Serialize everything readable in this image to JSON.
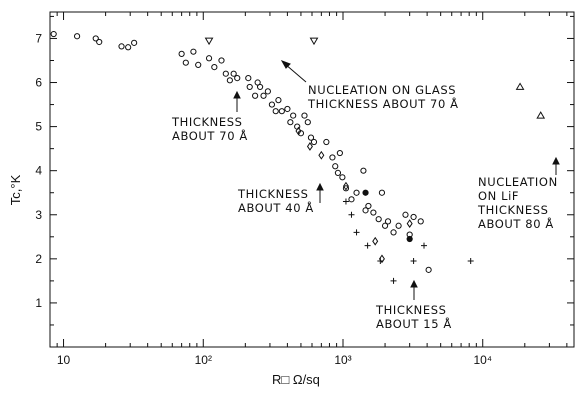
{
  "chart_data": {
    "type": "scatter",
    "x_scale": "log",
    "xlim": [
      8,
      45000
    ],
    "ylim": [
      0,
      7.6
    ],
    "xlabel": "R□ Ω/sq",
    "ylabel": "Tc,°K",
    "x_ticks": [
      {
        "value": 10,
        "label": "10"
      },
      {
        "value": 100,
        "label": "10²"
      },
      {
        "value": 1000,
        "label": "10³"
      },
      {
        "value": 10000,
        "label": "10⁴"
      }
    ],
    "y_ticks": [
      1,
      2,
      3,
      4,
      5,
      6,
      7
    ],
    "grid": false,
    "series": [
      {
        "marker": "circle",
        "points": [
          [
            8.5,
            7.1
          ],
          [
            12.5,
            7.05
          ],
          [
            17,
            7.0
          ],
          [
            18,
            6.92
          ],
          [
            26,
            6.82
          ],
          [
            29,
            6.8
          ],
          [
            32,
            6.9
          ],
          [
            70,
            6.65
          ],
          [
            75,
            6.45
          ],
          [
            85,
            6.7
          ],
          [
            92,
            6.4
          ],
          [
            110,
            6.55
          ],
          [
            120,
            6.35
          ],
          [
            135,
            6.5
          ],
          [
            145,
            6.2
          ],
          [
            155,
            6.05
          ],
          [
            165,
            6.2
          ],
          [
            175,
            6.1
          ],
          [
            210,
            6.1
          ],
          [
            215,
            5.9
          ],
          [
            235,
            5.7
          ],
          [
            245,
            6.0
          ],
          [
            255,
            5.9
          ],
          [
            270,
            5.7
          ],
          [
            290,
            5.8
          ],
          [
            310,
            5.5
          ],
          [
            330,
            5.35
          ],
          [
            345,
            5.6
          ],
          [
            365,
            5.35
          ],
          [
            400,
            5.4
          ],
          [
            420,
            5.1
          ],
          [
            440,
            5.25
          ],
          [
            470,
            5.0
          ],
          [
            500,
            4.85
          ],
          [
            530,
            5.25
          ],
          [
            560,
            5.1
          ],
          [
            590,
            4.75
          ],
          [
            620,
            4.65
          ],
          [
            760,
            4.65
          ],
          [
            840,
            4.3
          ],
          [
            880,
            4.1
          ],
          [
            920,
            3.95
          ],
          [
            950,
            4.4
          ],
          [
            990,
            3.85
          ],
          [
            1050,
            3.6
          ],
          [
            1150,
            3.35
          ],
          [
            1250,
            3.5
          ],
          [
            1400,
            4.0
          ],
          [
            1450,
            3.1
          ],
          [
            1520,
            3.2
          ],
          [
            1650,
            3.05
          ],
          [
            1800,
            2.9
          ],
          [
            1900,
            3.5
          ],
          [
            2000,
            2.75
          ],
          [
            2100,
            2.85
          ],
          [
            2300,
            2.6
          ],
          [
            2500,
            2.75
          ],
          [
            2800,
            3.0
          ],
          [
            3000,
            2.55
          ],
          [
            3200,
            2.95
          ],
          [
            3600,
            2.85
          ],
          [
            4100,
            1.75
          ]
        ]
      },
      {
        "marker": "diamond",
        "points": [
          [
            480,
            4.9
          ],
          [
            580,
            4.55
          ],
          [
            700,
            4.35
          ],
          [
            1050,
            3.65
          ],
          [
            1700,
            2.4
          ],
          [
            1900,
            2.0
          ],
          [
            3000,
            2.8
          ]
        ]
      },
      {
        "marker": "plus",
        "points": [
          [
            1050,
            3.3
          ],
          [
            1150,
            3.0
          ],
          [
            1250,
            2.6
          ],
          [
            1500,
            2.3
          ],
          [
            1850,
            1.95
          ],
          [
            2300,
            1.5
          ],
          [
            3200,
            1.95
          ],
          [
            3800,
            2.3
          ],
          [
            8200,
            1.95
          ]
        ]
      },
      {
        "marker": "filled-circle",
        "points": [
          [
            1450,
            3.5
          ],
          [
            3000,
            2.45
          ]
        ]
      },
      {
        "marker": "triangle-down",
        "points": [
          [
            110,
            6.95
          ],
          [
            620,
            6.95
          ]
        ]
      },
      {
        "marker": "triangle-up",
        "points": [
          [
            18500,
            5.9
          ],
          [
            26000,
            5.25
          ]
        ]
      }
    ]
  },
  "annotations": [
    {
      "lines": [
        "NUCLEATION ON GLASS",
        "THICKNESS ABOUT 70 Å"
      ]
    },
    {
      "lines": [
        "THICKNESS",
        "ABOUT 70 Å"
      ]
    },
    {
      "lines": [
        "THICKNESS",
        "ABOUT 40 Å"
      ]
    },
    {
      "lines": [
        "THICKNESS",
        "ABOUT 15 Å"
      ]
    },
    {
      "lines": [
        "NUCLEATION",
        "ON LiF",
        "THICKNESS",
        "ABOUT 80 Å"
      ]
    }
  ]
}
